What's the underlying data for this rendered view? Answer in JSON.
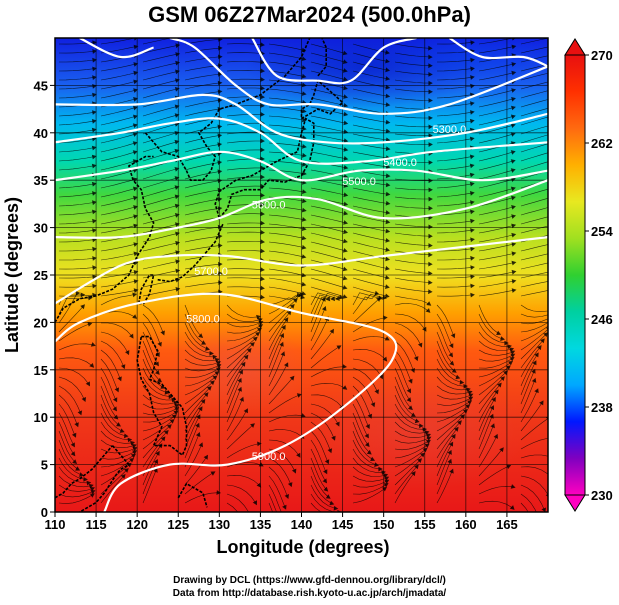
{
  "title": "GSM 06Z27Mar2024 (500.0hPa)",
  "axes": {
    "xlabel": "Longitude (degrees)",
    "ylabel": "Latitude  (degrees)",
    "xticks": [
      "110",
      "115",
      "120",
      "125",
      "130",
      "135",
      "140",
      "145",
      "150",
      "155",
      "160",
      "165"
    ],
    "yticks": [
      "0",
      "5",
      "10",
      "15",
      "20",
      "25",
      "30",
      "35",
      "40",
      "45"
    ],
    "xlim": [
      110,
      170
    ],
    "ylim": [
      0,
      50
    ]
  },
  "colorbar": {
    "ticks": [
      "230",
      "238",
      "246",
      "254",
      "262",
      "270"
    ],
    "min": 230,
    "max": 270,
    "colors": [
      "#ff00c0",
      "#8000c0",
      "#0018ff",
      "#00a8ff",
      "#00d8e0",
      "#00d0a0",
      "#30d030",
      "#a0e020",
      "#e8e820",
      "#ffb000",
      "#ff6a10",
      "#ff3000",
      "#e81010"
    ]
  },
  "contours": {
    "color": "#ffffff",
    "labels": [
      "5900.0",
      "5800.0",
      "5700.0",
      "5600.0",
      "5500.0",
      "5400.0",
      "5300.0"
    ]
  },
  "credits": {
    "line1": "Drawing by DCL (https://www.gfd-dennou.org/library/dcl/)",
    "line2": "Data from http://database.rish.kyoto-u.ac.jp/arch/jmadata/"
  },
  "chart_data": {
    "type": "heatmap",
    "title": "GSM 06Z27Mar2024 (500.0hPa)",
    "xlabel": "Longitude (degrees)",
    "ylabel": "Latitude  (degrees)",
    "xlim": [
      110,
      170
    ],
    "ylim": [
      0,
      50
    ],
    "color_variable_range": [
      230,
      270
    ],
    "grid": true,
    "overlays": [
      "temperature shading",
      "geopotential height contours",
      "wind streamlines",
      "coastlines"
    ],
    "height_contours": [
      {
        "label": "5900.0",
        "points": [
          [
            116,
            0
          ],
          [
            118,
            3
          ],
          [
            124,
            5
          ],
          [
            131,
            5
          ],
          [
            138,
            7
          ],
          [
            145,
            11
          ],
          [
            151,
            16
          ],
          [
            150,
            19
          ],
          [
            140,
            21
          ],
          [
            130,
            23
          ],
          [
            120,
            22
          ],
          [
            113,
            20
          ],
          [
            110,
            18
          ]
        ]
      },
      {
        "label": "5800.0",
        "points": [
          [
            110,
            22
          ],
          [
            118,
            26
          ],
          [
            124,
            27
          ],
          [
            131,
            27
          ],
          [
            140,
            26
          ],
          [
            150,
            27
          ],
          [
            160,
            28
          ],
          [
            170,
            29
          ]
        ]
      },
      {
        "label": "5700.0",
        "points": [
          [
            110,
            29
          ],
          [
            118,
            29
          ],
          [
            125,
            30
          ],
          [
            130,
            31
          ],
          [
            136,
            33
          ],
          [
            142,
            33
          ],
          [
            150,
            31
          ],
          [
            160,
            32
          ],
          [
            170,
            35
          ]
        ]
      },
      {
        "label": "5600.0",
        "points": [
          [
            110,
            35
          ],
          [
            118,
            36
          ],
          [
            124,
            37
          ],
          [
            130,
            38
          ],
          [
            135,
            37
          ],
          [
            140,
            35
          ],
          [
            147,
            36
          ],
          [
            154,
            36
          ],
          [
            162,
            35
          ],
          [
            170,
            36
          ]
        ]
      },
      {
        "label": "5500.0",
        "points": [
          [
            110,
            39
          ],
          [
            118,
            40
          ],
          [
            124,
            41
          ],
          [
            130,
            41.5
          ],
          [
            135,
            40
          ],
          [
            140,
            37
          ],
          [
            148,
            37
          ],
          [
            156,
            38
          ],
          [
            170,
            39
          ]
        ]
      },
      {
        "label": "5400.0",
        "points": [
          [
            110,
            43
          ],
          [
            120,
            43
          ],
          [
            128,
            44
          ],
          [
            132,
            43
          ],
          [
            137,
            40
          ],
          [
            143,
            39
          ],
          [
            150,
            39
          ],
          [
            160,
            40
          ],
          [
            170,
            42
          ]
        ]
      },
      {
        "label": "5300.0",
        "points": [
          [
            124,
            50
          ],
          [
            127,
            49
          ],
          [
            132,
            45
          ],
          [
            136,
            43
          ],
          [
            142,
            43
          ],
          [
            150,
            42
          ],
          [
            158,
            43
          ],
          [
            170,
            47
          ]
        ]
      },
      {
        "label": "",
        "points": [
          [
            113,
            50
          ],
          [
            118,
            48
          ],
          [
            122,
            49
          ]
        ]
      },
      {
        "label": "",
        "points": [
          [
            134,
            50
          ],
          [
            137,
            46
          ],
          [
            142,
            45.5
          ],
          [
            146,
            45.5
          ],
          [
            150,
            49
          ],
          [
            154,
            50
          ]
        ]
      },
      {
        "label": "",
        "points": [
          [
            158,
            50
          ],
          [
            162,
            48
          ],
          [
            167,
            48
          ],
          [
            170,
            47
          ]
        ]
      }
    ]
  }
}
